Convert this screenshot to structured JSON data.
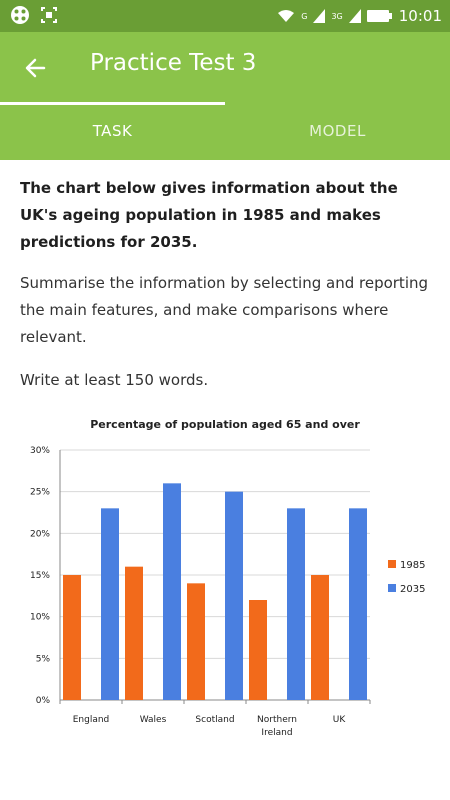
{
  "status_bar": {
    "time": "10:01",
    "network_label_1": "G",
    "network_label_2": "3G"
  },
  "app_bar": {
    "title": "Practice Test 3"
  },
  "tabs": [
    {
      "label": "TASK",
      "active": true
    },
    {
      "label": "MODEL",
      "active": false
    }
  ],
  "content": {
    "prompt": "The chart below gives information about the UK's ageing population in 1985 and makes predictions for 2035.",
    "instruction": "Summarise the information by selecting and reporting the main features, and make comparisons where relevant.",
    "word_requirement": "Write at least 150 words."
  },
  "chart_data": {
    "type": "bar",
    "title": "Percentage of population aged 65 and over",
    "categories": [
      "England",
      "Wales",
      "Scotland",
      "Northern Ireland",
      "UK"
    ],
    "series": [
      {
        "name": "1985",
        "values": [
          15,
          16,
          14,
          12,
          15
        ],
        "color": "#f26a1b"
      },
      {
        "name": "2035",
        "values": [
          23,
          26,
          25,
          23,
          23
        ],
        "color": "#4a7fe0"
      }
    ],
    "ylim": [
      0,
      30
    ],
    "yticks": [
      "0%",
      "5%",
      "10%",
      "15%",
      "20%",
      "25%",
      "30%"
    ],
    "grid": true,
    "legend": "right"
  },
  "colors": {
    "status_bar": "#6a9e35",
    "accent": "#8bc34a"
  }
}
